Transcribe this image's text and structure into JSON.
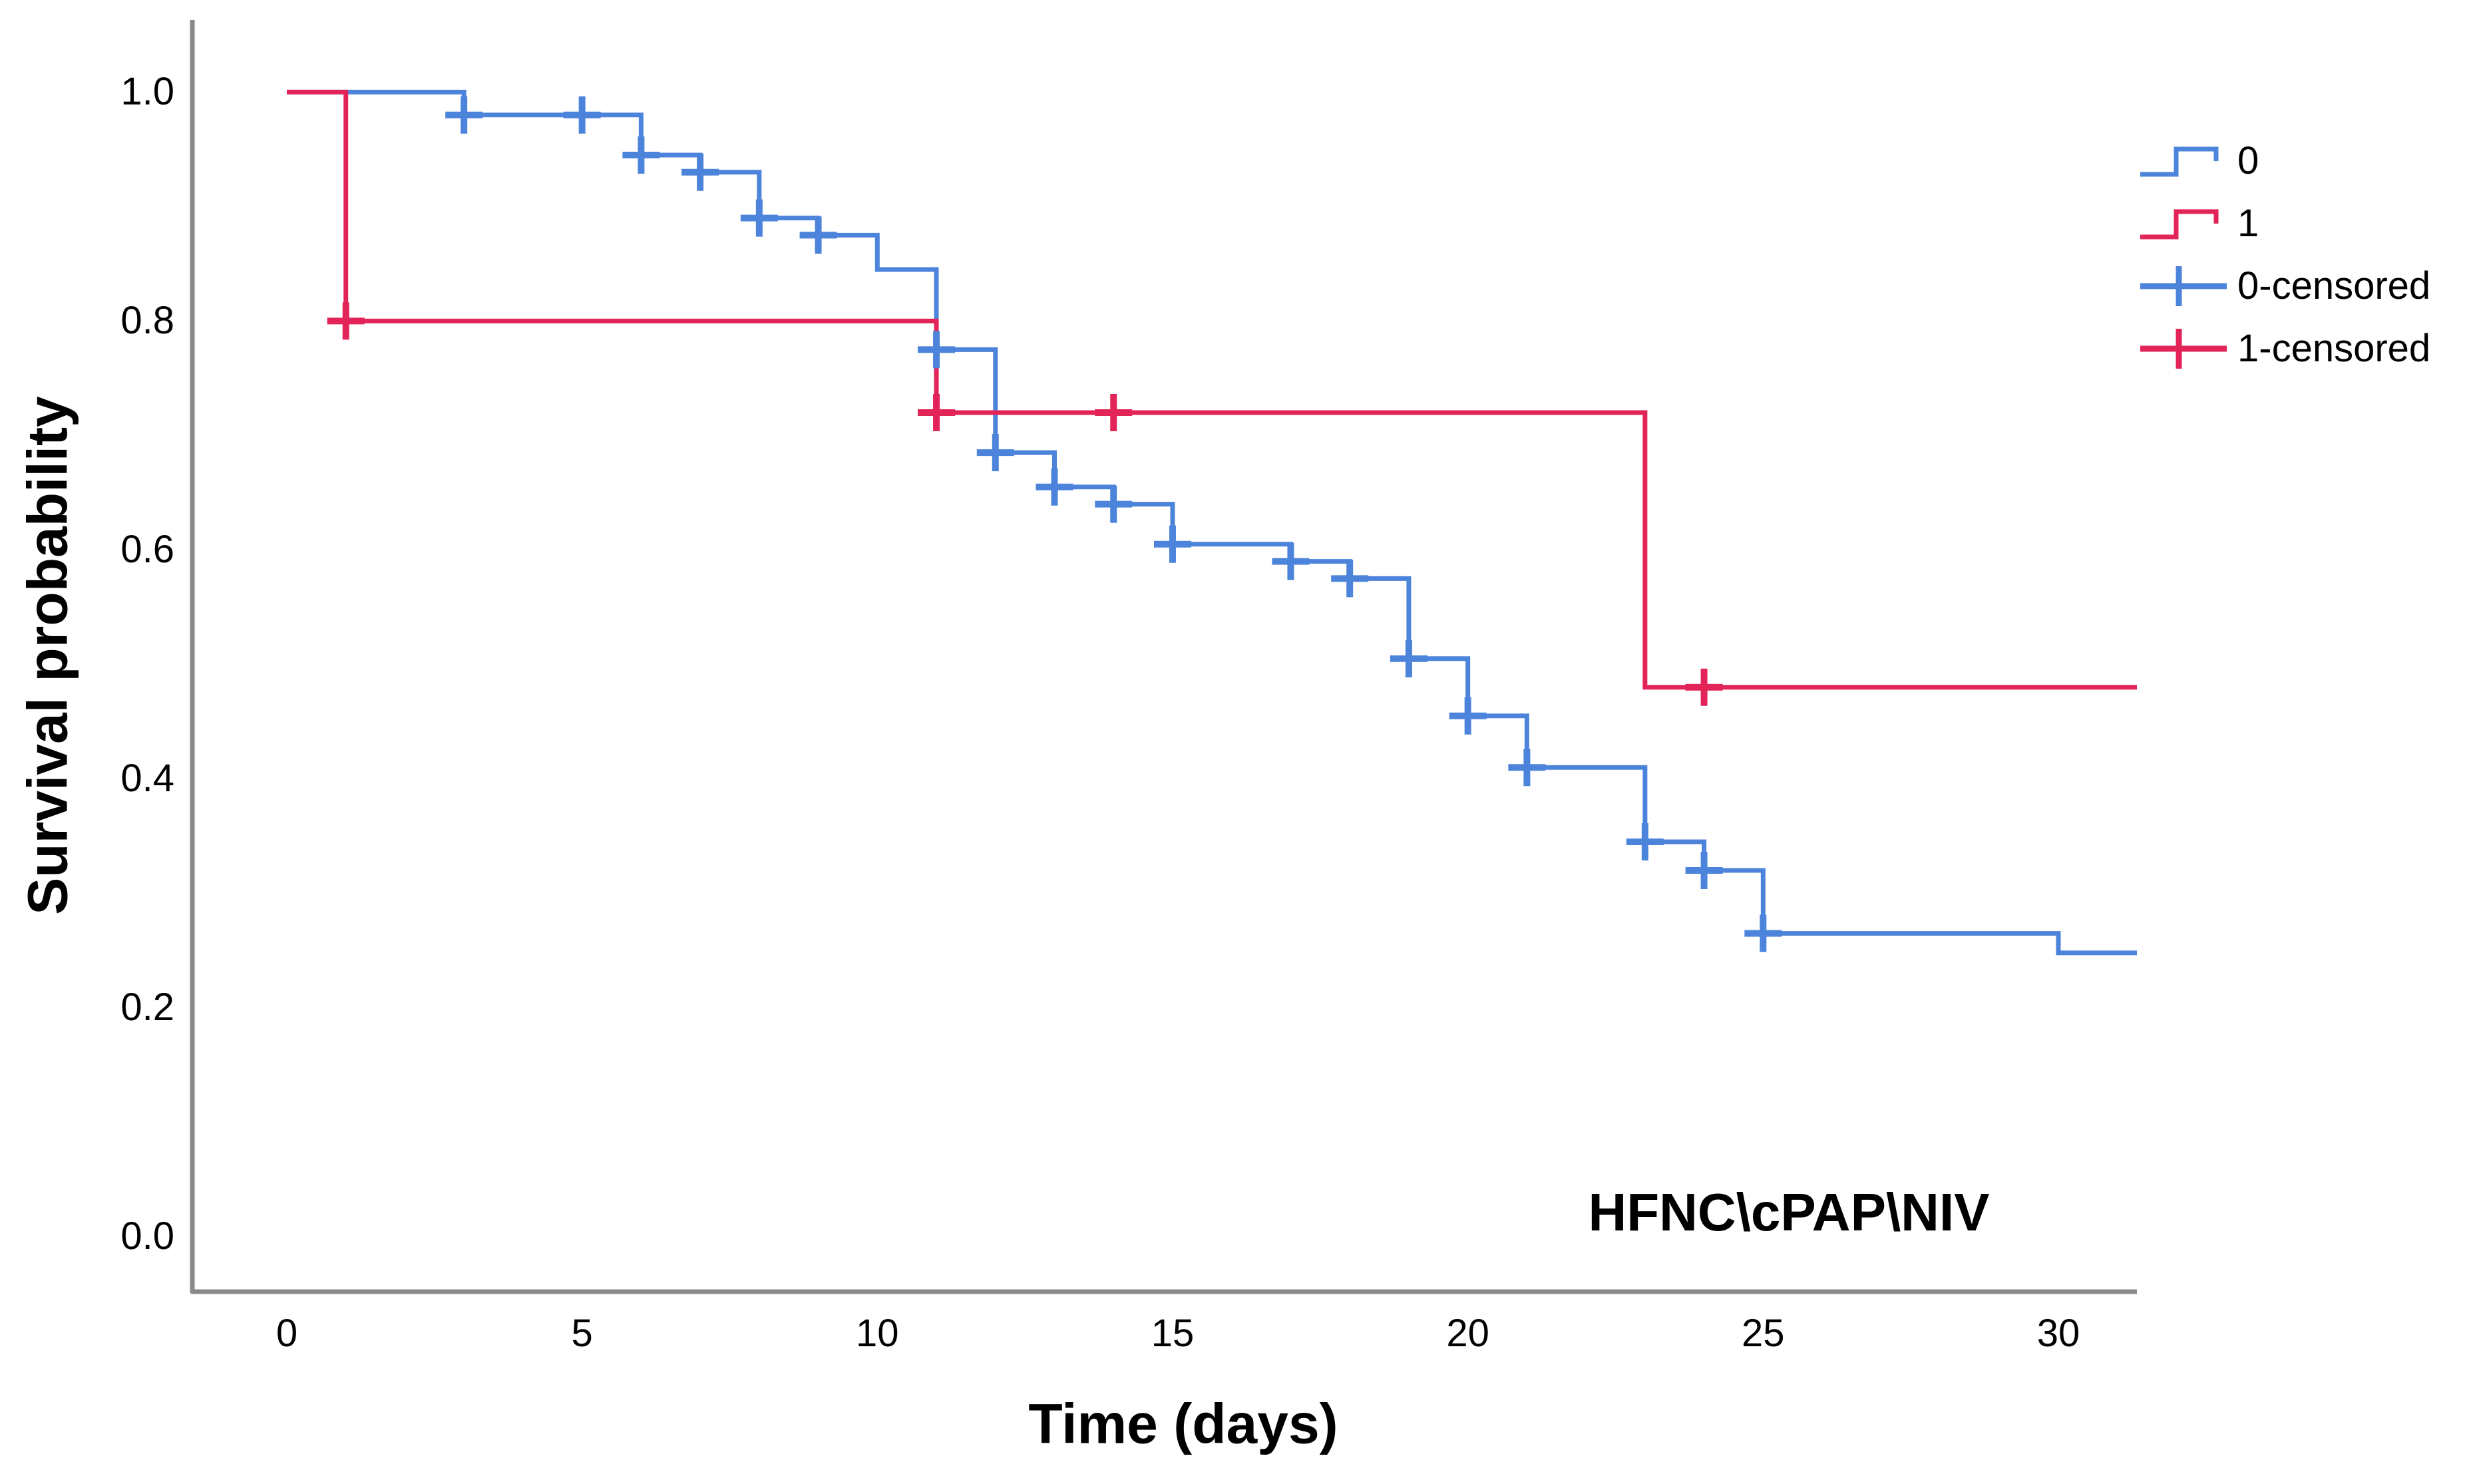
{
  "figure": {
    "background": "#ffffff",
    "axis_color": "#8A8A8A",
    "text_color": "#000000"
  },
  "chart_data": {
    "type": "line",
    "subtype": "kaplan-meier-step-plot",
    "annotation": "HFNC\\cPAP\\NIV",
    "xlabel": "Time (days)",
    "ylabel": "Survival probability",
    "xlim": [
      -1.6,
      31.33
    ],
    "ylim": [
      -0.048,
      1.063
    ],
    "x_end": 31.33,
    "grid": false,
    "legend_position": "top-right-outside",
    "x_ticks": [
      {
        "v": 0,
        "label": "0"
      },
      {
        "v": 5,
        "label": "5"
      },
      {
        "v": 10,
        "label": "10"
      },
      {
        "v": 15,
        "label": "15"
      },
      {
        "v": 20,
        "label": "20"
      },
      {
        "v": 25,
        "label": "25"
      },
      {
        "v": 30,
        "label": "30"
      }
    ],
    "y_ticks": [
      {
        "v": 1.0,
        "label": "1.0"
      },
      {
        "v": 0.8,
        "label": "0.8"
      },
      {
        "v": 0.6,
        "label": "0.6"
      },
      {
        "v": 0.4,
        "label": "0.4"
      },
      {
        "v": 0.2,
        "label": "0.2"
      },
      {
        "v": 0.0,
        "label": "0.0"
      }
    ],
    "series": [
      {
        "name": "0",
        "color": "#4D84DB",
        "line_width": 7,
        "steps": [
          [
            0,
            1.0
          ],
          [
            3,
            0.98
          ],
          [
            6,
            0.945
          ],
          [
            7,
            0.93
          ],
          [
            8,
            0.89
          ],
          [
            9,
            0.875
          ],
          [
            10,
            0.845
          ],
          [
            11,
            0.775
          ],
          [
            12,
            0.685
          ],
          [
            13,
            0.655
          ],
          [
            14,
            0.64
          ],
          [
            15,
            0.605
          ],
          [
            17,
            0.59
          ],
          [
            18,
            0.575
          ],
          [
            19,
            0.505
          ],
          [
            20,
            0.455
          ],
          [
            21,
            0.41
          ],
          [
            23,
            0.345
          ],
          [
            24,
            0.32
          ],
          [
            25,
            0.265
          ],
          [
            30,
            0.248
          ]
        ],
        "censored": [
          [
            3,
            0.98
          ],
          [
            5,
            0.98
          ],
          [
            6,
            0.945
          ],
          [
            7,
            0.93
          ],
          [
            8,
            0.89
          ],
          [
            9,
            0.875
          ],
          [
            11,
            0.775
          ],
          [
            12,
            0.685
          ],
          [
            13,
            0.655
          ],
          [
            14,
            0.64
          ],
          [
            15,
            0.605
          ],
          [
            17,
            0.59
          ],
          [
            18,
            0.575
          ],
          [
            19,
            0.505
          ],
          [
            20,
            0.455
          ],
          [
            21,
            0.41
          ],
          [
            23,
            0.345
          ],
          [
            24,
            0.32
          ],
          [
            25,
            0.265
          ]
        ]
      },
      {
        "name": "1",
        "color": "#E22458",
        "line_width": 7,
        "steps": [
          [
            0,
            1.0
          ],
          [
            1,
            0.8
          ],
          [
            11,
            0.72
          ],
          [
            23,
            0.48
          ]
        ],
        "censored": [
          [
            1,
            0.8
          ],
          [
            11,
            0.72
          ],
          [
            14,
            0.72
          ],
          [
            24,
            0.48
          ]
        ]
      }
    ],
    "legend": [
      {
        "label": "0",
        "glyph": "step",
        "series": "0"
      },
      {
        "label": "1",
        "glyph": "step",
        "series": "1"
      },
      {
        "label": "0-censored",
        "glyph": "plus",
        "series": "0"
      },
      {
        "label": "1-censored",
        "glyph": "plus",
        "series": "1"
      }
    ]
  }
}
